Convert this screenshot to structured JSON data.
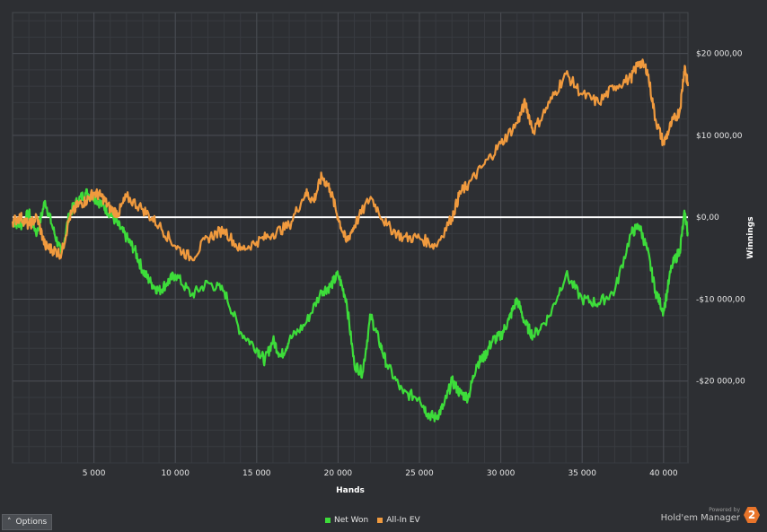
{
  "chart_data": {
    "type": "line",
    "xlabel": "Hands",
    "ylabel": "Winnings",
    "xlim": [
      0,
      41500
    ],
    "ylim": [
      -30000,
      25000
    ],
    "x_ticks": [
      5000,
      10000,
      15000,
      20000,
      25000,
      30000,
      35000,
      40000
    ],
    "x_tick_labels": [
      "5 000",
      "10 000",
      "15 000",
      "20 000",
      "25 000",
      "30 000",
      "35 000",
      "40 000"
    ],
    "y_ticks": [
      20000,
      10000,
      0,
      -10000,
      -20000
    ],
    "y_tick_labels": [
      "$20 000,00",
      "$10 000,00",
      "$0,00",
      "-$10 000,00",
      "-$20 000,00"
    ],
    "grid": true,
    "legend_position": "bottom-center",
    "series": [
      {
        "name": "Net Won",
        "color": "#3ddc3a",
        "x": [
          0,
          500,
          1000,
          1500,
          2000,
          2500,
          3000,
          3500,
          4000,
          4500,
          5000,
          5500,
          6000,
          6500,
          7000,
          7500,
          8000,
          8500,
          9000,
          9500,
          10000,
          11000,
          12000,
          13000,
          14000,
          15000,
          15500,
          16000,
          16500,
          17000,
          18000,
          19000,
          19500,
          20000,
          20500,
          21000,
          21500,
          22000,
          22500,
          23000,
          24000,
          25000,
          25500,
          26000,
          26500,
          27000,
          27500,
          28000,
          28500,
          29000,
          29500,
          30000,
          30500,
          31000,
          31500,
          32000,
          33000,
          34000,
          35000,
          36000,
          37000,
          38000,
          38500,
          39000,
          39500,
          40000,
          40500,
          41000,
          41300,
          41500
        ],
        "values": [
          -500,
          -1000,
          500,
          -2000,
          2000,
          -1500,
          -4500,
          500,
          2000,
          3000,
          2500,
          1500,
          500,
          -1000,
          -2500,
          -4000,
          -6500,
          -8000,
          -9000,
          -8000,
          -7000,
          -9500,
          -8000,
          -9000,
          -14000,
          -16000,
          -17500,
          -15000,
          -17000,
          -15000,
          -13000,
          -9000,
          -8500,
          -7000,
          -10000,
          -18000,
          -19000,
          -12000,
          -15000,
          -18000,
          -21500,
          -22000,
          -24000,
          -24500,
          -23000,
          -20000,
          -21500,
          -22000,
          -18000,
          -17000,
          -15000,
          -14500,
          -12500,
          -10000,
          -13000,
          -14500,
          -12000,
          -7000,
          -10000,
          -10500,
          -9000,
          -2000,
          -1000,
          -4000,
          -9000,
          -11500,
          -6000,
          -4000,
          500,
          -2000
        ]
      },
      {
        "name": "All-In EV",
        "color": "#f09a3e",
        "x": [
          0,
          500,
          1000,
          1500,
          2000,
          2500,
          3000,
          3500,
          4000,
          4500,
          5000,
          5500,
          6000,
          6500,
          7000,
          8000,
          9000,
          10000,
          11000,
          12000,
          13000,
          14000,
          15000,
          16000,
          17000,
          18000,
          18500,
          19000,
          19500,
          20000,
          20500,
          21000,
          22000,
          23000,
          24000,
          25000,
          26000,
          27000,
          27500,
          28000,
          29000,
          30000,
          31000,
          31500,
          32000,
          33000,
          34000,
          35000,
          36000,
          37000,
          38000,
          38500,
          39000,
          39500,
          40000,
          40500,
          41000,
          41300,
          41500
        ],
        "values": [
          -500,
          0,
          -1000,
          0,
          -3500,
          -4000,
          -4500,
          0,
          1500,
          2000,
          3000,
          2500,
          1000,
          500,
          2500,
          1000,
          -1000,
          -3500,
          -5000,
          -2500,
          -1500,
          -4000,
          -3000,
          -2000,
          -1000,
          3000,
          2000,
          5000,
          3500,
          0,
          -3000,
          -1000,
          2500,
          -1000,
          -2500,
          -2500,
          -3500,
          0,
          3000,
          4000,
          6500,
          9000,
          11500,
          14000,
          10500,
          14000,
          17500,
          15000,
          14000,
          16000,
          17000,
          19000,
          18000,
          12000,
          9000,
          11500,
          13000,
          18500,
          16000
        ]
      }
    ]
  },
  "ui": {
    "options_label": "Options",
    "powered_by": "Powered by",
    "product_name": "Hold'em Manager",
    "logo_glyph": "2"
  }
}
